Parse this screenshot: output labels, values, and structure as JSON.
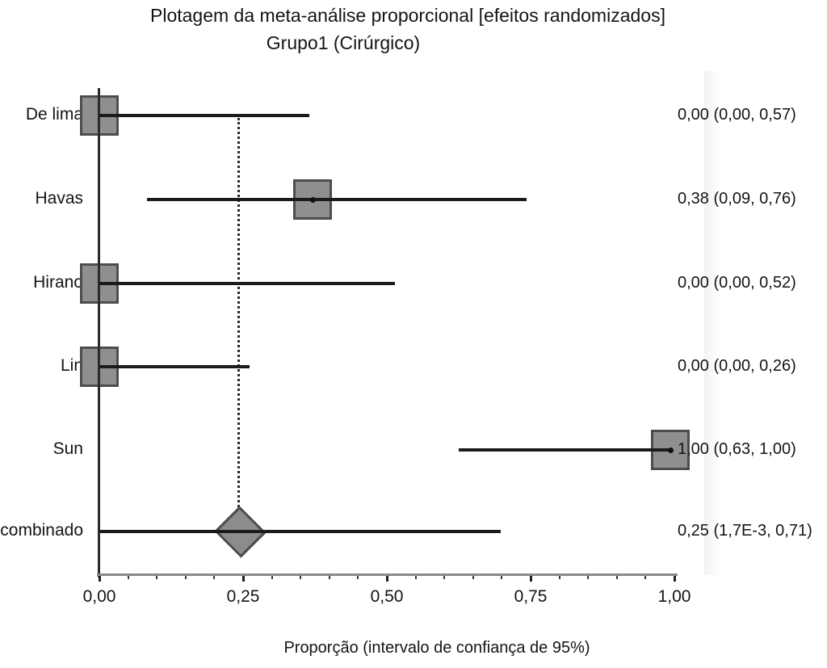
{
  "chart_data": {
    "type": "forest",
    "title": "Plotagem da meta-análise proporcional [efeitos randomizados]",
    "subtitle": "Grupo1 (Cirúrgico)",
    "xlabel": "Proporção (intervalo de confiança de 95%)",
    "xlim": [
      0,
      1
    ],
    "x_ticks": [
      0,
      0.25,
      0.5,
      0.75,
      1.0
    ],
    "x_tick_labels": [
      "0,00",
      "0,25",
      "0,50",
      "0,75",
      "1,00"
    ],
    "x_minor_tick_step": 0.05,
    "reference_line_x": 0.25,
    "grid": false,
    "legend": false,
    "studies": [
      {
        "label": "De lima",
        "marker": "square",
        "estimate": 0.0,
        "ci_low": 0.0,
        "ci_high": 0.57,
        "value_label": "0,00 (0,00, 0,57)"
      },
      {
        "label": "Havas",
        "marker": "square",
        "estimate": 0.38,
        "ci_low": 0.09,
        "ci_high": 0.76,
        "value_label": "0,38 (0,09, 0,76)"
      },
      {
        "label": "Hirano",
        "marker": "square",
        "estimate": 0.0,
        "ci_low": 0.0,
        "ci_high": 0.52,
        "value_label": "0,00 (0,00, 0,52)"
      },
      {
        "label": "Lin",
        "marker": "square",
        "estimate": 0.0,
        "ci_low": 0.0,
        "ci_high": 0.26,
        "value_label": "0,00 (0,00, 0,26)"
      },
      {
        "label": "Sun",
        "marker": "square",
        "estimate": 1.0,
        "ci_low": 0.63,
        "ci_high": 1.0,
        "value_label": "1,00 (0,63, 1,00)"
      },
      {
        "label": "combinado",
        "marker": "diamond",
        "estimate": 0.25,
        "ci_low": 0.0017,
        "ci_high": 0.71,
        "value_label": "0,25 (1,7E-3, 0,71)"
      }
    ]
  },
  "colors": {
    "background": "#ffffff",
    "marker_fill": "#8f8f8f",
    "marker_border": "#4d4d4d",
    "ci_line": "#1b1b1b",
    "axis_vertical": "#2b2b2b",
    "axis_horizontal": "#8a8a8a",
    "reference_line": "#2a2a2a",
    "text": "#141414"
  }
}
